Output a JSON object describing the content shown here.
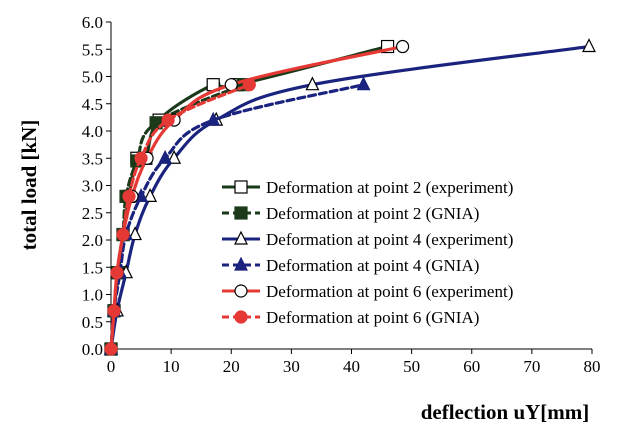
{
  "chart_data": {
    "type": "line",
    "title": "",
    "xlabel": "deflection uY[mm]",
    "ylabel": "total load [kN]",
    "xlim": [
      0,
      80
    ],
    "ylim": [
      0,
      6
    ],
    "x_ticks": [
      "0",
      "10",
      "20",
      "30",
      "40",
      "50",
      "60",
      "70",
      "80"
    ],
    "y_ticks": [
      "0.0",
      "0.5",
      "1.0",
      "1.5",
      "2.0",
      "2.5",
      "3.0",
      "3.5",
      "4.0",
      "4.5",
      "5.0",
      "5.5",
      "6.0"
    ],
    "grid": false,
    "legend_position": "right",
    "series": [
      {
        "name": "Deformation at point 2 (experiment)",
        "color": "#1a3a1a",
        "line": "solid",
        "marker": "open-square",
        "x": [
          0,
          0.5,
          1.2,
          2.0,
          3.0,
          4.3,
          5.8,
          8.0,
          17.0,
          21.0,
          46.0
        ],
        "y": [
          0,
          0.7,
          1.4,
          2.1,
          2.8,
          3.5,
          3.5,
          4.2,
          4.85,
          4.85,
          5.55
        ]
      },
      {
        "name": "Deformation at point 2 (GNIA)",
        "color": "#1a3a1a",
        "line": "dashed",
        "marker": "filled-square",
        "x": [
          0,
          0.5,
          1.2,
          2.0,
          2.5,
          4.3,
          7.5,
          22.0
        ],
        "y": [
          0,
          0.7,
          1.4,
          2.1,
          2.8,
          3.45,
          4.15,
          4.85
        ]
      },
      {
        "name": "Deformation at point 4 (experiment)",
        "color": "#1a237e",
        "line": "solid",
        "marker": "open-triangle",
        "x": [
          0,
          1.0,
          2.5,
          4.0,
          6.5,
          10.5,
          17.5,
          33.5,
          79.5
        ],
        "y": [
          0,
          0.7,
          1.4,
          2.1,
          2.8,
          3.5,
          4.2,
          4.85,
          5.55
        ]
      },
      {
        "name": "Deformation at point 4 (GNIA)",
        "color": "#1a237e",
        "line": "dashed",
        "marker": "filled-triangle",
        "x": [
          0,
          0.5,
          1.5,
          2.5,
          5.0,
          9.0,
          17.0,
          42.0
        ],
        "y": [
          0,
          0.7,
          1.4,
          2.1,
          2.8,
          3.5,
          4.2,
          4.85
        ]
      },
      {
        "name": "Deformation at point 6 (experiment)",
        "color": "#e53935",
        "line": "solid",
        "marker": "open-circle",
        "x": [
          0,
          0.5,
          1.0,
          2.0,
          3.5,
          6.0,
          10.5,
          20.0,
          48.5
        ],
        "y": [
          0,
          0.7,
          1.4,
          2.1,
          2.8,
          3.5,
          4.2,
          4.85,
          5.55
        ]
      },
      {
        "name": "Deformation at point 6 (GNIA)",
        "color": "#e53935",
        "line": "dashed",
        "marker": "filled-circle",
        "x": [
          0,
          0.5,
          1.0,
          2.0,
          3.0,
          5.0,
          9.5,
          23.0
        ],
        "y": [
          0,
          0.7,
          1.4,
          2.1,
          2.8,
          3.5,
          4.2,
          4.85
        ]
      }
    ]
  }
}
